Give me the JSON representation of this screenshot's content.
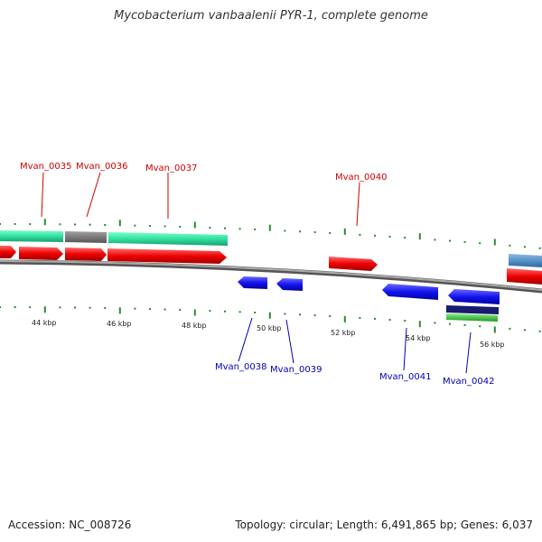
{
  "title": "Mycobacterium vanbaalenii PYR-1, complete genome",
  "footer": {
    "accession": "Accession: NC_008726",
    "summary": "Topology: circular; Length: 6,491,865 bp; Genes: 6,037"
  },
  "axis": {
    "labels": [
      "44 kbp",
      "46 kbp",
      "48 kbp",
      "50 kbp",
      "52 kbp",
      "54 kbp",
      "56 kbp"
    ]
  },
  "genes": {
    "top": [
      "Mvan_0035",
      "Mvan_0036",
      "Mvan_0037",
      "Mvan_0040"
    ],
    "bottom": [
      "Mvan_0038",
      "Mvan_0039",
      "Mvan_0041",
      "Mvan_0042"
    ]
  },
  "colors": {
    "forward_gene": "#ff0000",
    "reverse_gene": "#1a1aff",
    "cog_green": "#33e0a0",
    "cog_gray": "#777777",
    "cog_steelblue": "#4a86c0",
    "cog_navy": "#1a1a6e",
    "cog_lime": "#3cc63c",
    "backbone": "#8a8a8a",
    "tick": "#2a8a2a",
    "top_label": "#cc0000",
    "bottom_label": "#0000bb"
  }
}
